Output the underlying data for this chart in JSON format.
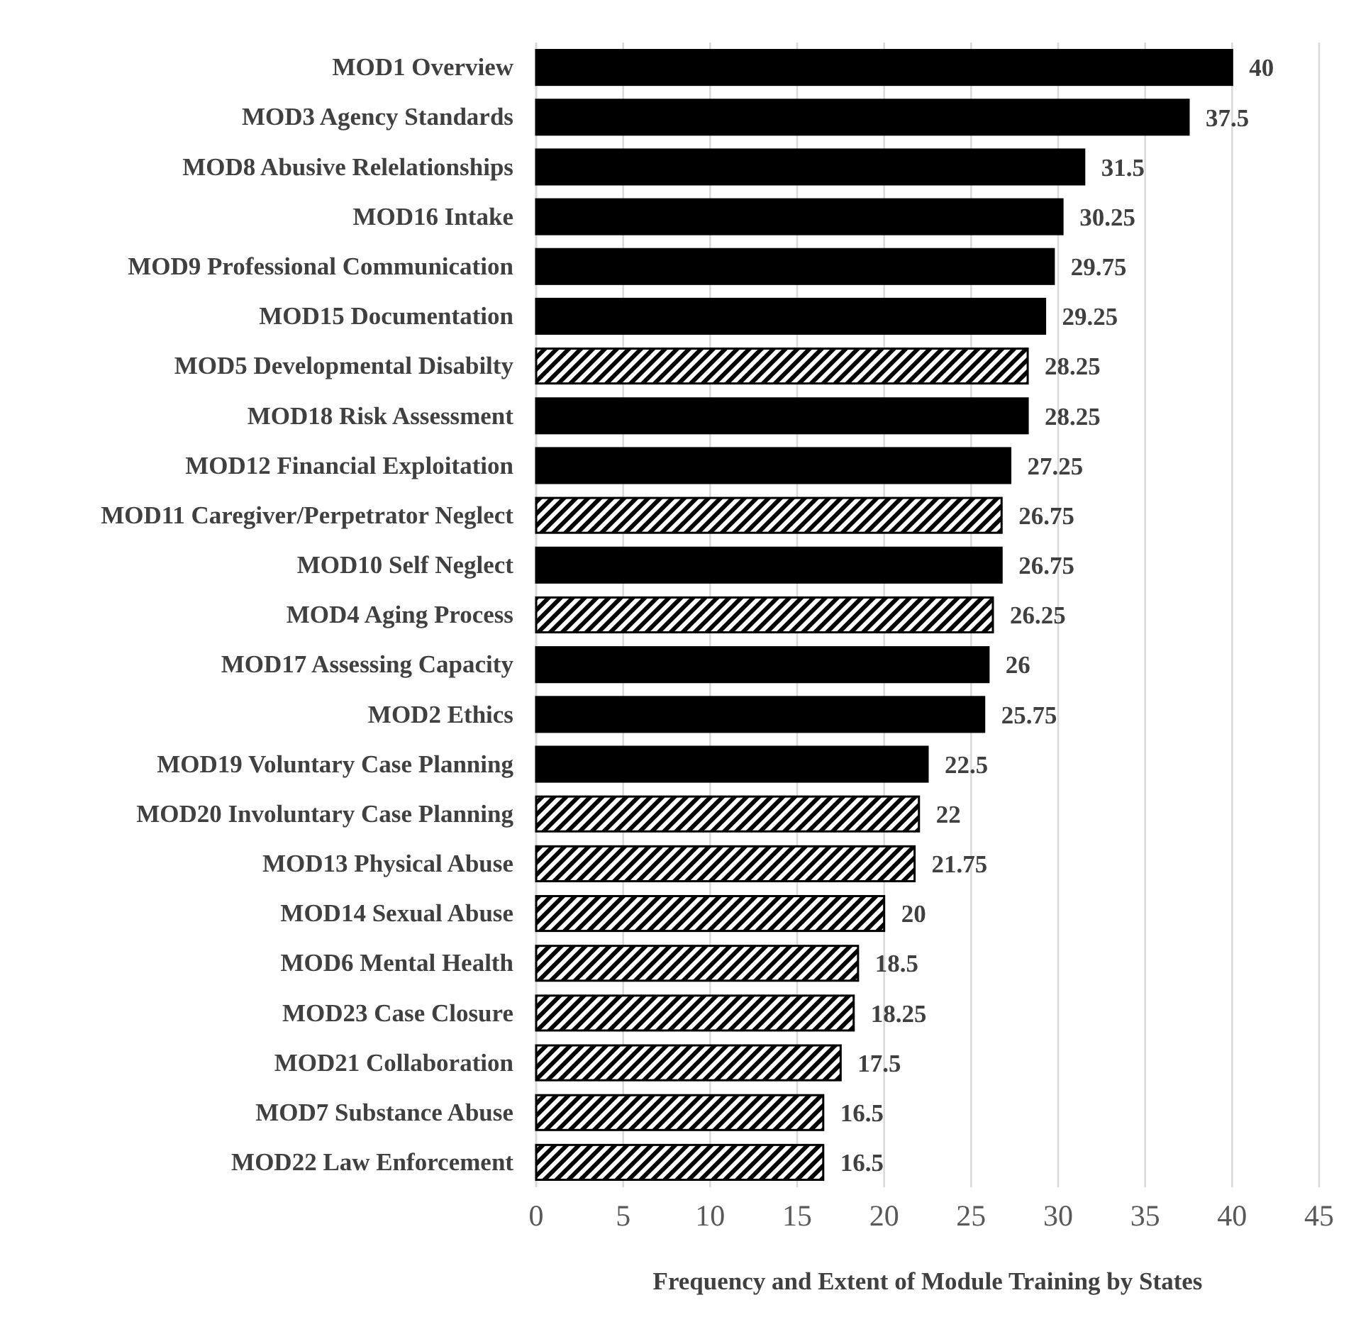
{
  "chart_data": {
    "type": "bar",
    "orientation": "horizontal",
    "stacked": true,
    "xlabel": "Frequency and Extent of Module Training by States",
    "categories": [
      "MOD1 Overview",
      "MOD3 Agency Standards",
      "MOD8 Abusive Relelationships",
      "MOD16 Intake",
      "MOD9 Professional Communication",
      "MOD15 Documentation",
      "MOD5 Developmental Disabilty",
      "MOD18 Risk Assessment",
      "MOD12 Financial Exploitation",
      "MOD11 Caregiver/Perpetrator Neglect",
      "MOD10 Self Neglect",
      "MOD4 Aging Process",
      "MOD17 Assessing Capacity",
      "MOD2 Ethics",
      "MOD19 Voluntary Case Planning",
      "MOD20 Involuntary Case Planning",
      "MOD13 Physical Abuse",
      "MOD14 Sexual Abuse",
      "MOD6 Mental Health",
      "MOD23 Case Closure",
      "MOD21 Collaboration",
      "MOD7 Substance Abuse",
      "MOD22 Law Enforcement"
    ],
    "series": [
      {
        "color": "#000000",
        "values": [
          40,
          37.5,
          31.5,
          30.25,
          29.75,
          29.25,
          null,
          28.25,
          27.25,
          null,
          26.75,
          null,
          26,
          25.75,
          22.5,
          null,
          null,
          null,
          null,
          null,
          null,
          null,
          null
        ]
      },
      {
        "color": "#000000",
        "values": [
          null,
          null,
          null,
          null,
          null,
          null,
          28.25,
          null,
          null,
          26.75,
          null,
          26.25,
          null,
          null,
          null,
          22,
          21.75,
          20,
          18.5,
          18.25,
          17.5,
          16.5,
          16.5
        ]
      }
    ],
    "xlim": [
      0,
      45
    ],
    "xticks": [
      0,
      5,
      10,
      15,
      20,
      25,
      30,
      35,
      40,
      45
    ],
    "grid": "x",
    "data_labels": true
  }
}
